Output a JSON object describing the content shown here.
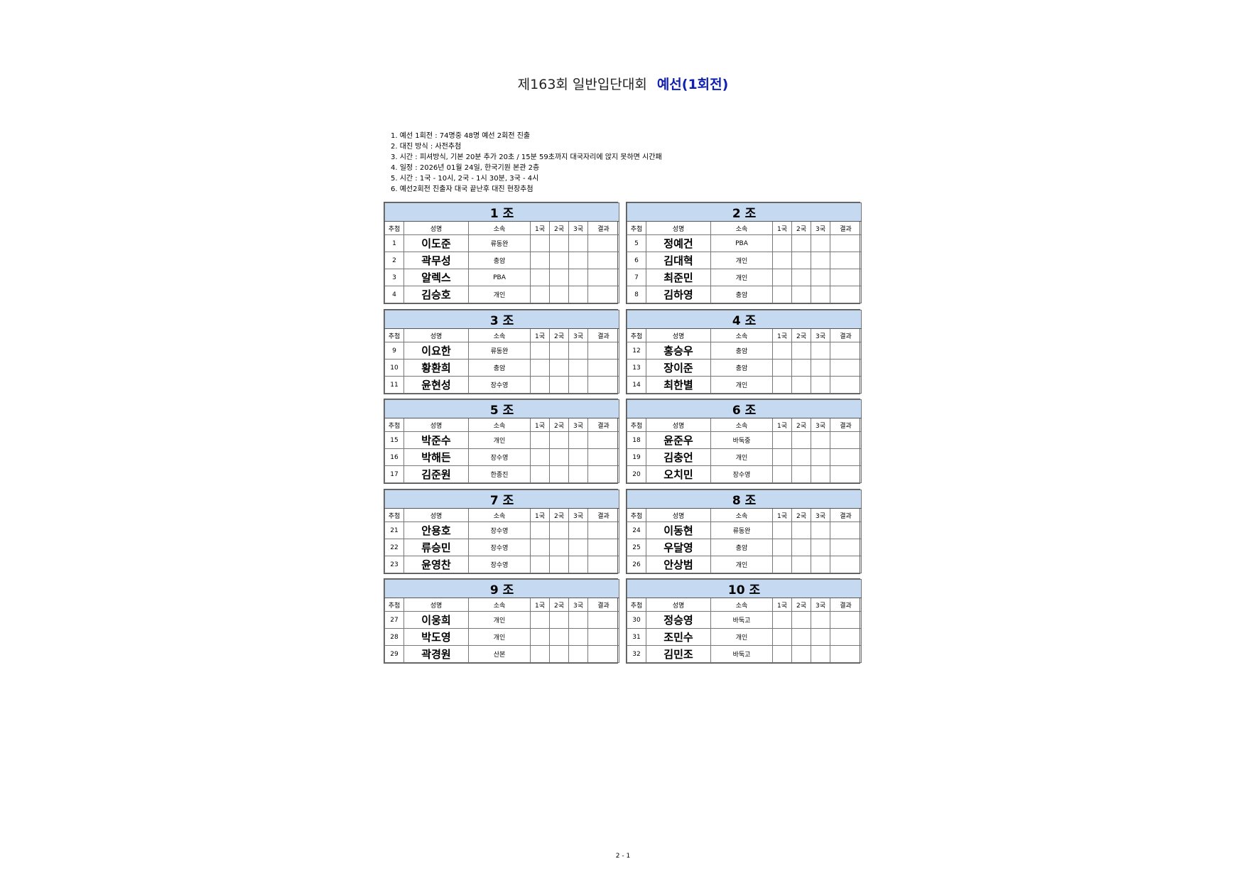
{
  "title": {
    "main": "제163회 일반입단대회",
    "stage": "예선(1회전)"
  },
  "rules": [
    "1. 예선 1회전 : 74명중 48명 예선 2회전 진출",
    "2. 대진 방식 : 사전추첨",
    "3. 시간 : 피셔방식, 기본 20분 추가 20초 / 15분 59초까지 대국자리에 앉지 못하면 시간패",
    "4. 일정 : 2026년 01월 24일, 한국기원 본관 2층",
    "5. 시간 : 1국 - 10시, 2국 - 1시 30분, 3국 - 4시",
    "6. 예선2회전 진출자 대국 끝난후 대진 현장추첨"
  ],
  "columns": [
    "추첨",
    "성명",
    "소속",
    "1국",
    "2국",
    "3국",
    "결과"
  ],
  "header_color": "#c5d9f1",
  "groups": [
    {
      "label": "1 조",
      "players": [
        {
          "no": "1",
          "name": "이도준",
          "aff": "류동완"
        },
        {
          "no": "2",
          "name": "곽무성",
          "aff": "충암"
        },
        {
          "no": "3",
          "name": "알렉스",
          "aff": "PBA"
        },
        {
          "no": "4",
          "name": "김승호",
          "aff": "개인"
        }
      ]
    },
    {
      "label": "2 조",
      "players": [
        {
          "no": "5",
          "name": "정예건",
          "aff": "PBA"
        },
        {
          "no": "6",
          "name": "김대혁",
          "aff": "개인"
        },
        {
          "no": "7",
          "name": "최준민",
          "aff": "개인"
        },
        {
          "no": "8",
          "name": "김하영",
          "aff": "충암"
        }
      ]
    },
    {
      "label": "3 조",
      "players": [
        {
          "no": "9",
          "name": "이요한",
          "aff": "류동완"
        },
        {
          "no": "10",
          "name": "황환희",
          "aff": "충암"
        },
        {
          "no": "11",
          "name": "윤현성",
          "aff": "장수영"
        }
      ]
    },
    {
      "label": "4 조",
      "players": [
        {
          "no": "12",
          "name": "홍승우",
          "aff": "충암"
        },
        {
          "no": "13",
          "name": "장이준",
          "aff": "충암"
        },
        {
          "no": "14",
          "name": "최한별",
          "aff": "개인"
        }
      ]
    },
    {
      "label": "5 조",
      "players": [
        {
          "no": "15",
          "name": "박준수",
          "aff": "개인"
        },
        {
          "no": "16",
          "name": "박해든",
          "aff": "장수영"
        },
        {
          "no": "17",
          "name": "김준원",
          "aff": "한종진"
        }
      ]
    },
    {
      "label": "6 조",
      "players": [
        {
          "no": "18",
          "name": "윤준우",
          "aff": "바둑중"
        },
        {
          "no": "19",
          "name": "김충언",
          "aff": "개인"
        },
        {
          "no": "20",
          "name": "오치민",
          "aff": "장수영"
        }
      ]
    },
    {
      "label": "7 조",
      "players": [
        {
          "no": "21",
          "name": "안용호",
          "aff": "장수영"
        },
        {
          "no": "22",
          "name": "류승민",
          "aff": "장수영"
        },
        {
          "no": "23",
          "name": "윤영찬",
          "aff": "장수영"
        }
      ]
    },
    {
      "label": "8 조",
      "players": [
        {
          "no": "24",
          "name": "이동현",
          "aff": "류동완"
        },
        {
          "no": "25",
          "name": "우달영",
          "aff": "충암"
        },
        {
          "no": "26",
          "name": "안상범",
          "aff": "개인"
        }
      ]
    },
    {
      "label": "9 조",
      "players": [
        {
          "no": "27",
          "name": "이웅희",
          "aff": "개인"
        },
        {
          "no": "28",
          "name": "박도영",
          "aff": "개인"
        },
        {
          "no": "29",
          "name": "곽경원",
          "aff": "산본"
        }
      ]
    },
    {
      "label": "10 조",
      "players": [
        {
          "no": "30",
          "name": "정승영",
          "aff": "바둑고"
        },
        {
          "no": "31",
          "name": "조민수",
          "aff": "개인"
        },
        {
          "no": "32",
          "name": "김민조",
          "aff": "바둑고"
        }
      ]
    }
  ],
  "page_number": "2 - 1"
}
